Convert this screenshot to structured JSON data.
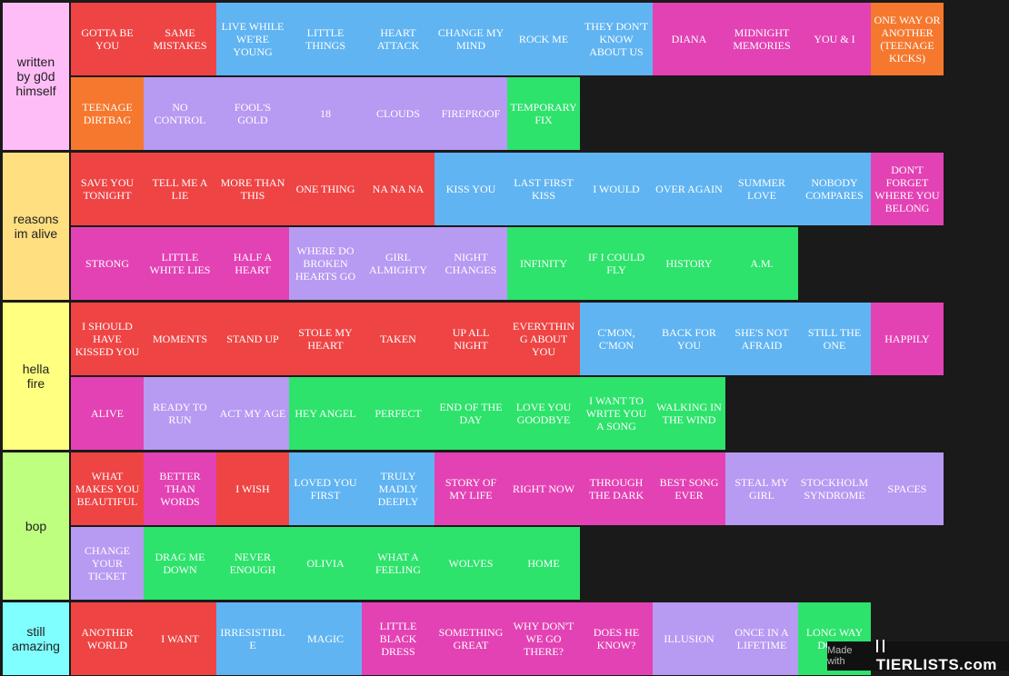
{
  "colors": {
    "red": "#ef4444",
    "blue": "#60b4f2",
    "pink": "#e342b4",
    "orange": "#f5782e",
    "purple": "#b79af2",
    "green": "#2de36b"
  },
  "tiers": [
    {
      "label": "written\nby g0d\nhimself",
      "color": "#ffbdf7",
      "items": [
        {
          "text": "GOTTA BE YOU",
          "color": "red"
        },
        {
          "text": "SAME MISTAKES",
          "color": "red"
        },
        {
          "text": "LIVE WHILE WE'RE YOUNG",
          "color": "blue"
        },
        {
          "text": "LITTLE THINGS",
          "color": "blue"
        },
        {
          "text": "HEART ATTACK",
          "color": "blue"
        },
        {
          "text": "CHANGE MY MIND",
          "color": "blue"
        },
        {
          "text": "ROCK ME",
          "color": "blue"
        },
        {
          "text": "THEY DON'T KNOW ABOUT US",
          "color": "blue"
        },
        {
          "text": "DIANA",
          "color": "pink"
        },
        {
          "text": "MIDNIGHT MEMORIES",
          "color": "pink"
        },
        {
          "text": "YOU & I",
          "color": "pink"
        },
        {
          "text": "ONE WAY OR ANOTHER (TEENAGE KICKS)",
          "color": "orange"
        },
        {
          "text": "TEENAGE DIRTBAG",
          "color": "orange"
        },
        {
          "text": "NO CONTROL",
          "color": "purple"
        },
        {
          "text": "FOOL'S GOLD",
          "color": "purple"
        },
        {
          "text": "18",
          "color": "purple"
        },
        {
          "text": "CLOUDS",
          "color": "purple"
        },
        {
          "text": "FIREPROOF",
          "color": "purple"
        },
        {
          "text": "TEMPORARY FIX",
          "color": "green"
        }
      ]
    },
    {
      "label": "reasons\nim alive",
      "color": "#ffdf80",
      "items": [
        {
          "text": "SAVE YOU TONIGHT",
          "color": "red"
        },
        {
          "text": "TELL ME A LIE",
          "color": "red"
        },
        {
          "text": "MORE THAN THIS",
          "color": "red"
        },
        {
          "text": "ONE THING",
          "color": "red"
        },
        {
          "text": "NA NA NA",
          "color": "red"
        },
        {
          "text": "KISS YOU",
          "color": "blue"
        },
        {
          "text": "LAST FIRST KISS",
          "color": "blue"
        },
        {
          "text": "I WOULD",
          "color": "blue"
        },
        {
          "text": "OVER AGAIN",
          "color": "blue"
        },
        {
          "text": "SUMMER LOVE",
          "color": "blue"
        },
        {
          "text": "NOBODY COMPARES",
          "color": "blue"
        },
        {
          "text": "DON'T FORGET WHERE YOU BELONG",
          "color": "pink"
        },
        {
          "text": "STRONG",
          "color": "pink"
        },
        {
          "text": "LITTLE WHITE LIES",
          "color": "pink"
        },
        {
          "text": "HALF A HEART",
          "color": "pink"
        },
        {
          "text": "WHERE DO BROKEN HEARTS GO",
          "color": "purple"
        },
        {
          "text": "GIRL ALMIGHTY",
          "color": "purple"
        },
        {
          "text": "NIGHT CHANGES",
          "color": "purple"
        },
        {
          "text": "INFINITY",
          "color": "green"
        },
        {
          "text": "IF I COULD FLY",
          "color": "green"
        },
        {
          "text": "HISTORY",
          "color": "green"
        },
        {
          "text": "A.M.",
          "color": "green"
        }
      ]
    },
    {
      "label": "hella\nfire",
      "color": "#ffff80",
      "items": [
        {
          "text": "I SHOULD HAVE KISSED YOU",
          "color": "red"
        },
        {
          "text": "MOMENTS",
          "color": "red"
        },
        {
          "text": "STAND UP",
          "color": "red"
        },
        {
          "text": "STOLE MY HEART",
          "color": "red"
        },
        {
          "text": "TAKEN",
          "color": "red"
        },
        {
          "text": "UP ALL NIGHT",
          "color": "red"
        },
        {
          "text": "EVERYTHING ABOUT YOU",
          "color": "red"
        },
        {
          "text": "C'MON, C'MON",
          "color": "blue"
        },
        {
          "text": "BACK FOR YOU",
          "color": "blue"
        },
        {
          "text": "SHE'S NOT AFRAID",
          "color": "blue"
        },
        {
          "text": "STILL THE ONE",
          "color": "blue"
        },
        {
          "text": "HAPPILY",
          "color": "pink"
        },
        {
          "text": "ALIVE",
          "color": "pink"
        },
        {
          "text": "READY TO RUN",
          "color": "purple"
        },
        {
          "text": "ACT MY AGE",
          "color": "purple"
        },
        {
          "text": "HEY ANGEL",
          "color": "green"
        },
        {
          "text": "PERFECT",
          "color": "green"
        },
        {
          "text": "END OF THE DAY",
          "color": "green"
        },
        {
          "text": "LOVE YOU GOODBYE",
          "color": "green"
        },
        {
          "text": "I WANT TO WRITE YOU A SONG",
          "color": "green"
        },
        {
          "text": "WALKING IN THE WIND",
          "color": "green"
        }
      ]
    },
    {
      "label": "bop",
      "color": "#bfff7f",
      "items": [
        {
          "text": "WHAT MAKES YOU BEAUTIFUL",
          "color": "red"
        },
        {
          "text": "BETTER THAN WORDS",
          "color": "pink"
        },
        {
          "text": "I WISH",
          "color": "red"
        },
        {
          "text": "LOVED YOU FIRST",
          "color": "blue"
        },
        {
          "text": "TRULY MADLY DEEPLY",
          "color": "blue"
        },
        {
          "text": "STORY OF MY LIFE",
          "color": "pink"
        },
        {
          "text": "RIGHT NOW",
          "color": "pink"
        },
        {
          "text": "THROUGH THE DARK",
          "color": "pink"
        },
        {
          "text": "BEST SONG EVER",
          "color": "pink"
        },
        {
          "text": "STEAL MY GIRL",
          "color": "purple"
        },
        {
          "text": "STOCKHOLM SYNDROME",
          "color": "purple"
        },
        {
          "text": "SPACES",
          "color": "purple"
        },
        {
          "text": "CHANGE YOUR TICKET",
          "color": "purple"
        },
        {
          "text": "DRAG ME DOWN",
          "color": "green"
        },
        {
          "text": "NEVER ENOUGH",
          "color": "green"
        },
        {
          "text": "OLIVIA",
          "color": "green"
        },
        {
          "text": "WHAT A FEELING",
          "color": "green"
        },
        {
          "text": "WOLVES",
          "color": "green"
        },
        {
          "text": "HOME",
          "color": "green"
        }
      ]
    },
    {
      "label": "still\namazing",
      "color": "#7fffff",
      "items": [
        {
          "text": "ANOTHER WORLD",
          "color": "red"
        },
        {
          "text": "I WANT",
          "color": "red"
        },
        {
          "text": "IRRESISTIBLE",
          "color": "blue"
        },
        {
          "text": "MAGIC",
          "color": "blue"
        },
        {
          "text": "LITTLE BLACK DRESS",
          "color": "pink"
        },
        {
          "text": "SOMETHING GREAT",
          "color": "pink"
        },
        {
          "text": "WHY DON'T WE GO THERE?",
          "color": "pink"
        },
        {
          "text": "DOES HE KNOW?",
          "color": "pink"
        },
        {
          "text": "ILLUSION",
          "color": "purple"
        },
        {
          "text": "ONCE IN A LIFETIME",
          "color": "purple"
        },
        {
          "text": "LONG WAY DOWN",
          "color": "green"
        }
      ]
    }
  ],
  "watermark": {
    "made_with": "Made with",
    "brand": "TIERLISTS.com"
  }
}
